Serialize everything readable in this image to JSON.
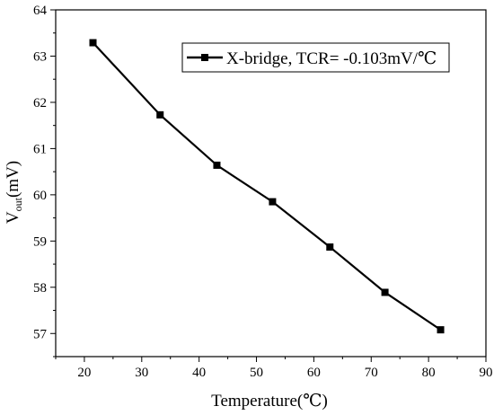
{
  "chart_data": {
    "type": "line",
    "title": "",
    "xlabel": "Temperature(℃)",
    "ylabel": {
      "main": "V",
      "sub": "out",
      "suffix": "(mV)"
    },
    "xlim": [
      15,
      90
    ],
    "ylim": [
      56.5,
      64
    ],
    "x_ticks": [
      20,
      30,
      40,
      50,
      60,
      70,
      80,
      90
    ],
    "y_ticks": [
      57,
      58,
      59,
      60,
      61,
      62,
      63,
      64
    ],
    "grid": false,
    "legend_position": "top-right",
    "series": [
      {
        "name": "X-bridge, TCR= -0.103mV/℃",
        "color": "#000000",
        "marker": "square",
        "x": [
          21.5,
          33.2,
          43.1,
          52.8,
          62.8,
          72.4,
          82.1
        ],
        "y": [
          63.29,
          61.73,
          60.64,
          59.85,
          58.87,
          57.89,
          57.08
        ]
      }
    ]
  }
}
